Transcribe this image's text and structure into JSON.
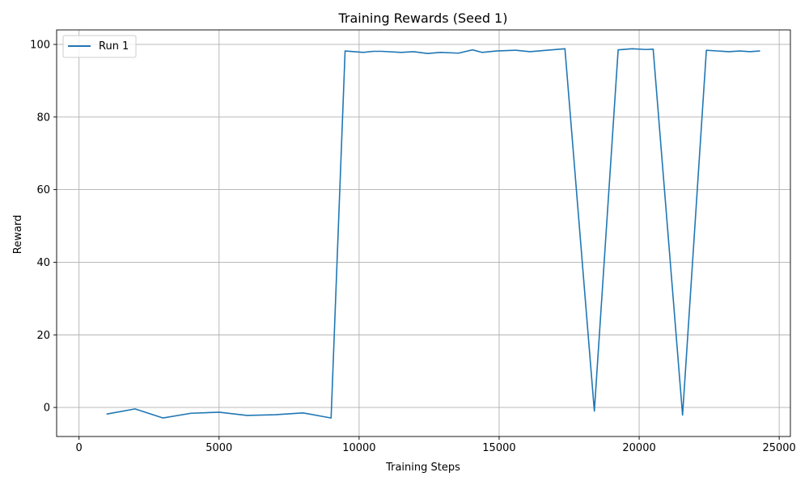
{
  "chart_data": {
    "type": "line",
    "title": "Training Rewards (Seed 1)",
    "xlabel": "Training Steps",
    "ylabel": "Reward",
    "xlim": [
      -800,
      25400
    ],
    "ylim": [
      -8,
      104
    ],
    "xticks": [
      0,
      5000,
      10000,
      15000,
      20000,
      25000
    ],
    "yticks": [
      0,
      20,
      40,
      60,
      80,
      100
    ],
    "grid": true,
    "legend_position": "upper-left",
    "series": [
      {
        "name": "Run 1",
        "color": "#1f77b4",
        "x": [
          1000,
          2000,
          3000,
          4000,
          5000,
          6000,
          7000,
          8000,
          9000,
          9500,
          10150,
          10500,
          10800,
          11500,
          11950,
          12450,
          12900,
          13550,
          14050,
          14400,
          14900,
          15600,
          16100,
          16700,
          17350,
          18400,
          19250,
          19750,
          20250,
          20500,
          21550,
          22400,
          23200,
          23600,
          23950,
          24300
        ],
        "y": [
          -1.8,
          -0.4,
          -2.9,
          -1.6,
          -1.3,
          -2.2,
          -2.0,
          -1.5,
          -2.9,
          98.2,
          97.8,
          98.1,
          98.1,
          97.8,
          98.0,
          97.5,
          97.8,
          97.6,
          98.5,
          97.8,
          98.2,
          98.4,
          98.0,
          98.4,
          98.8,
          -1.0,
          98.5,
          98.8,
          98.6,
          98.7,
          -2.1,
          98.4,
          98.0,
          98.2,
          98.0,
          98.2
        ]
      }
    ]
  }
}
